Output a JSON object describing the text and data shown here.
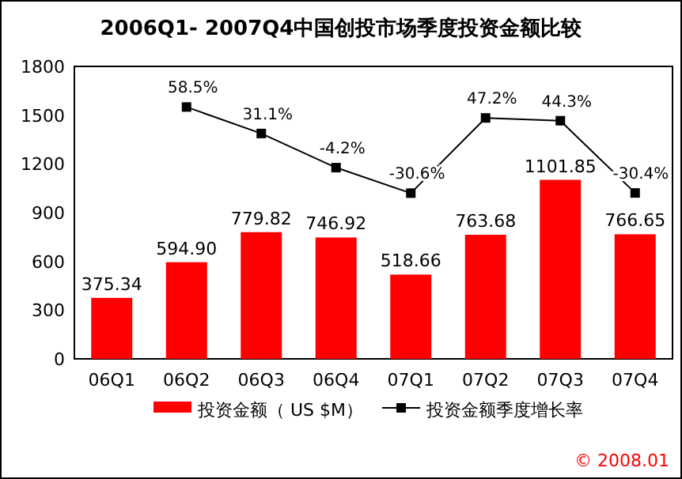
{
  "chart_data": {
    "type": "bar",
    "title": "2006Q1- 2007Q4中国创投市场季度投资金额比较",
    "categories": [
      "06Q1",
      "06Q2",
      "06Q3",
      "06Q4",
      "07Q1",
      "07Q2",
      "07Q3",
      "07Q4"
    ],
    "series": [
      {
        "name": "投资金额（ US $M）",
        "color": "#ff0000",
        "values": [
          375.34,
          594.9,
          779.82,
          746.92,
          518.66,
          763.68,
          1101.85,
          766.65
        ],
        "value_labels": [
          "375.34",
          "594.90",
          "779.82",
          "746.92",
          "518.66",
          "763.68",
          "1101.85",
          "766.65"
        ]
      },
      {
        "name": "投资金额季度增长率",
        "type": "line",
        "axis": "y2",
        "color": "#000000",
        "marker": "square",
        "values": [
          null,
          58.5,
          31.1,
          -4.2,
          -30.6,
          47.2,
          44.3,
          -30.4
        ],
        "value_labels": [
          null,
          "58.5%",
          "31.1%",
          "-4.2%",
          "-30.6%",
          "47.2%",
          "44.3%",
          "-30.4%"
        ]
      }
    ],
    "ylim": [
      0,
      1800
    ],
    "yticks": [
      0,
      300,
      600,
      900,
      1200,
      1500,
      1800
    ],
    "y2lim": [
      -202,
      100.5
    ],
    "legend": "bottom",
    "grid": false,
    "annotations": [
      "© 2008.01"
    ]
  }
}
